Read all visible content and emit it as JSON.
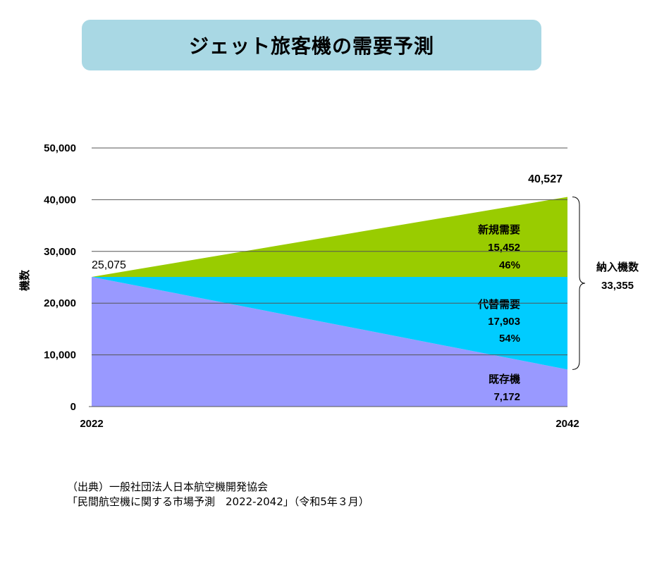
{
  "title": "ジェット旅客機の需要予測",
  "chart_data": {
    "type": "area",
    "x": [
      "2022",
      "2042"
    ],
    "ylabel": "機数",
    "ylim": [
      0,
      50000
    ],
    "yticks": [
      "0",
      "10,000",
      "20,000",
      "30,000",
      "40,000",
      "50,000"
    ],
    "grid": true,
    "start_total": 25075,
    "start_total_label": "25,075",
    "end_total": 40527,
    "end_total_label": "40,527",
    "series": [
      {
        "name": "既存機",
        "values": [
          25075,
          7172
        ],
        "color": "#9999ff",
        "label_lines": [
          "既存機",
          "7,172"
        ]
      },
      {
        "name": "代替需要",
        "values": [
          0,
          17903
        ],
        "color": "#00ccff",
        "label_lines": [
          "代替需要",
          "17,903",
          "54%"
        ]
      },
      {
        "name": "新規需要",
        "values": [
          0,
          15452
        ],
        "color": "#99cc00",
        "label_lines": [
          "新規需要",
          "15,452",
          "46%"
        ]
      }
    ],
    "bracket_label_lines": [
      "納入機数",
      "33,355"
    ]
  },
  "source": {
    "line1": "（出典）一般社団法人日本航空機開発協会",
    "line2": "「民間航空機に関する市場予測　2022-2042」（令和5年３月）"
  }
}
